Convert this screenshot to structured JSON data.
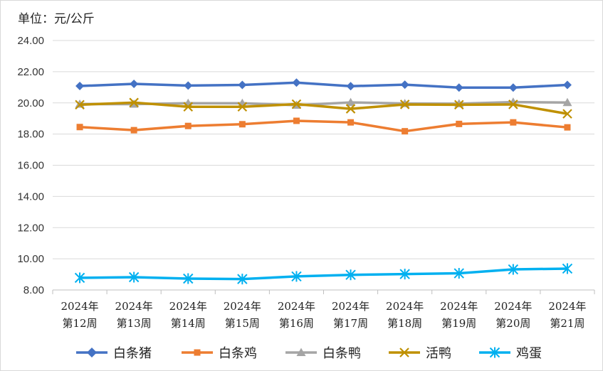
{
  "unit_label": "单位：元/公斤",
  "chart_data": {
    "type": "line",
    "title": "",
    "xlabel": "",
    "ylabel": "单位：元/公斤",
    "ylim": [
      8,
      24
    ],
    "yticks": [
      "8.00",
      "10.00",
      "12.00",
      "14.00",
      "16.00",
      "18.00",
      "20.00",
      "22.00",
      "24.00"
    ],
    "ytick_values": [
      8,
      10,
      12,
      14,
      16,
      18,
      20,
      22,
      24
    ],
    "categories": [
      [
        "2024年",
        "第12周"
      ],
      [
        "2024年",
        "第13周"
      ],
      [
        "2024年",
        "第14周"
      ],
      [
        "2024年",
        "第15周"
      ],
      [
        "2024年",
        "第16周"
      ],
      [
        "2024年",
        "第17周"
      ],
      [
        "2024年",
        "第18周"
      ],
      [
        "2024年",
        "第19周"
      ],
      [
        "2024年",
        "第20周"
      ],
      [
        "2024年",
        "第21周"
      ]
    ],
    "grid": "horizontal",
    "legend": "bottom",
    "series": [
      {
        "name": "白条猪",
        "color": "#4472C4",
        "marker": "diamond",
        "values": [
          21.08,
          21.22,
          21.11,
          21.15,
          21.3,
          21.07,
          21.17,
          20.98,
          20.98,
          21.15
        ]
      },
      {
        "name": "白条鸡",
        "color": "#ED7D31",
        "marker": "square",
        "values": [
          18.45,
          18.25,
          18.52,
          18.63,
          18.85,
          18.75,
          18.18,
          18.65,
          18.75,
          18.43
        ]
      },
      {
        "name": "白条鸭",
        "color": "#A5A5A5",
        "marker": "triangle",
        "values": [
          19.92,
          19.92,
          19.98,
          19.98,
          19.85,
          20.03,
          19.96,
          19.95,
          20.05,
          20.02
        ]
      },
      {
        "name": "活鸭",
        "color": "#BF9000",
        "marker": "x",
        "values": [
          19.88,
          20.02,
          19.75,
          19.75,
          19.92,
          19.62,
          19.9,
          19.88,
          19.9,
          19.3
        ]
      },
      {
        "name": "鸡蛋",
        "color": "#00B0F0",
        "marker": "asterisk",
        "values": [
          8.78,
          8.82,
          8.73,
          8.7,
          8.87,
          8.97,
          9.02,
          9.07,
          9.32,
          9.37
        ]
      }
    ]
  }
}
